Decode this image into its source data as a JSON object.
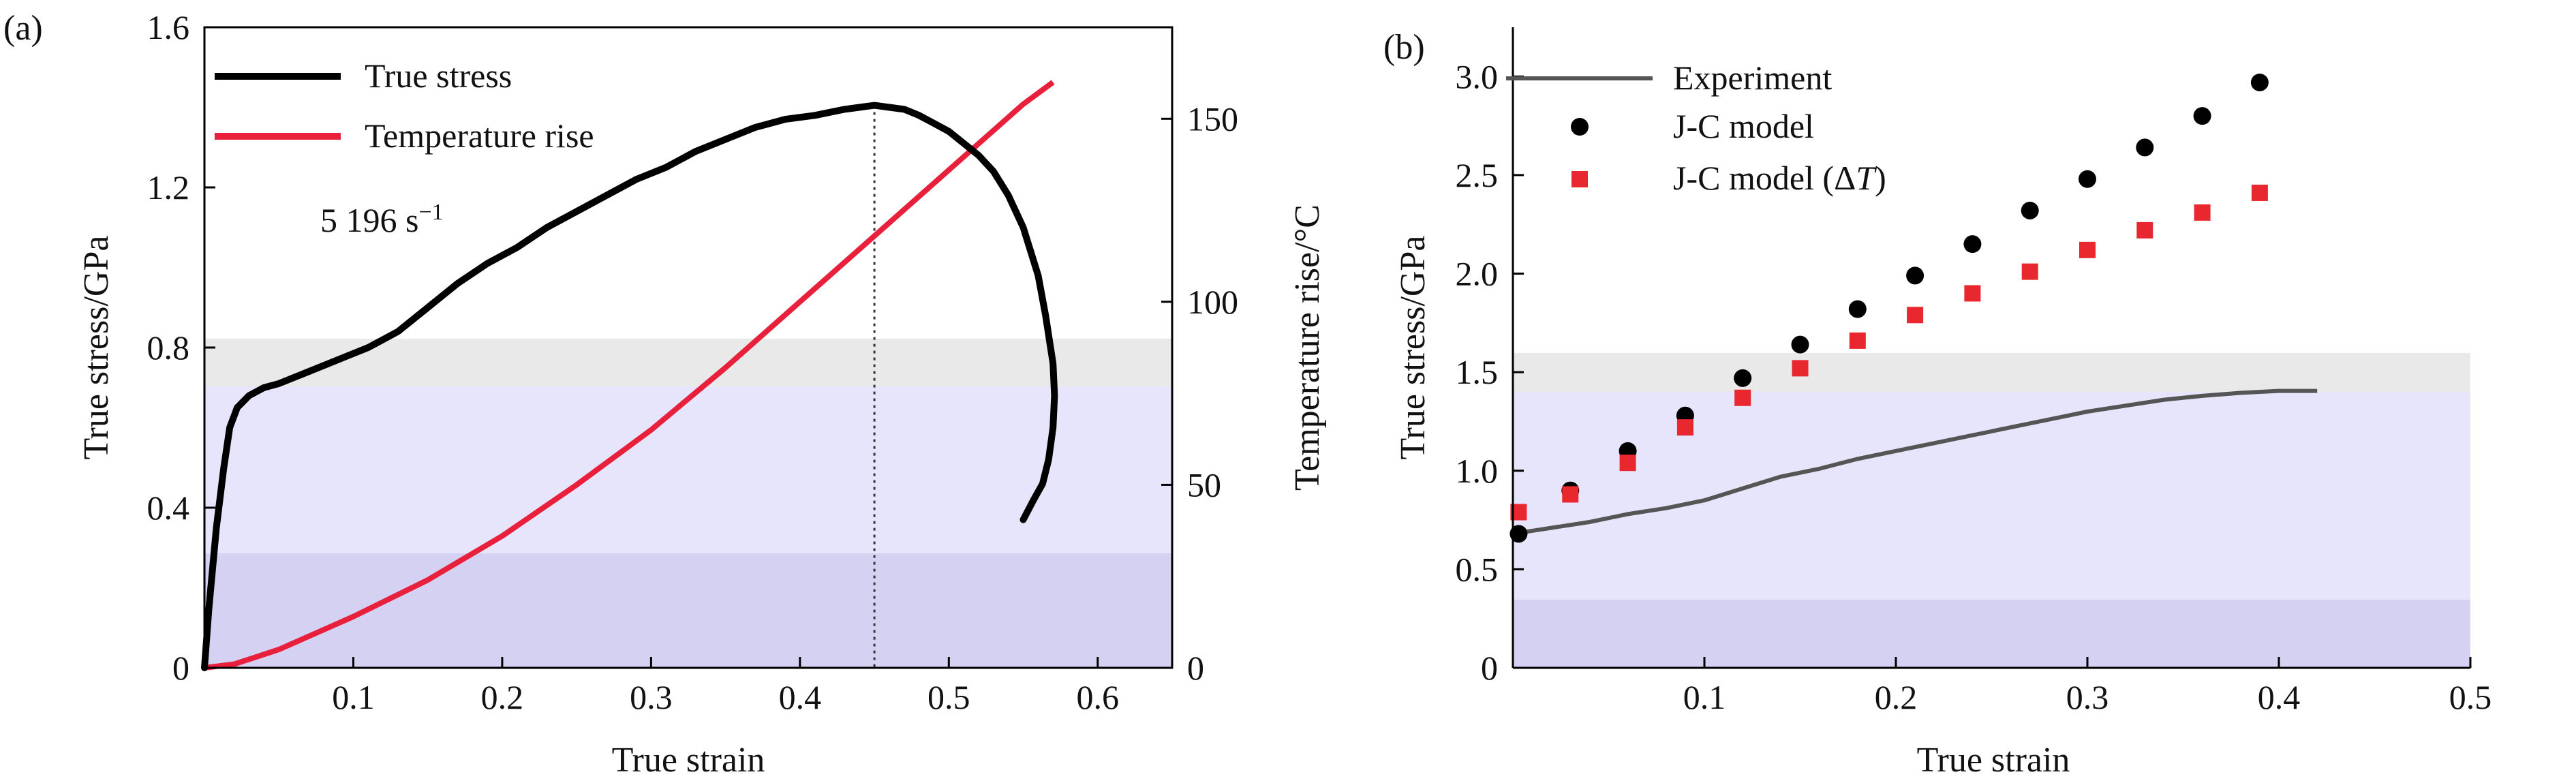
{
  "chart_data": [
    {
      "panel": "(a)",
      "type": "line",
      "annotation": {
        "text": "5 196 s",
        "superscript": "−1"
      },
      "xlabel": "True strain",
      "ylabel": "True stress/GPa",
      "ylabel_right": "Temperature rise/°C",
      "xlim": [
        0,
        0.65
      ],
      "ylim": [
        0,
        1.6
      ],
      "ylim_right": [
        0,
        175
      ],
      "xticks": [
        {
          "value": 0.1,
          "label": "0.1"
        },
        {
          "value": 0.2,
          "label": "0.2"
        },
        {
          "value": 0.3,
          "label": "0.3"
        },
        {
          "value": 0.4,
          "label": "0.4"
        },
        {
          "value": 0.5,
          "label": "0.5"
        },
        {
          "value": 0.6,
          "label": "0.6"
        }
      ],
      "yticks": [
        {
          "value": 0,
          "label": "0"
        },
        {
          "value": 0.4,
          "label": "0.4"
        },
        {
          "value": 0.8,
          "label": "0.8"
        },
        {
          "value": 1.2,
          "label": "1.2"
        },
        {
          "value": 1.6,
          "label": "1.6"
        }
      ],
      "yticks_right": [
        {
          "value": 0,
          "label": "0"
        },
        {
          "value": 50,
          "label": "50"
        },
        {
          "value": 100,
          "label": "100"
        },
        {
          "value": 150,
          "label": "150"
        }
      ],
      "reference_line": {
        "x": 0.45,
        "style": "dotted"
      },
      "series": [
        {
          "name": "True stress",
          "axis": "left",
          "color": "#000000",
          "x": [
            0.0,
            0.003,
            0.008,
            0.013,
            0.017,
            0.022,
            0.03,
            0.04,
            0.05,
            0.07,
            0.09,
            0.11,
            0.13,
            0.15,
            0.17,
            0.19,
            0.21,
            0.23,
            0.25,
            0.27,
            0.29,
            0.31,
            0.33,
            0.35,
            0.37,
            0.39,
            0.41,
            0.43,
            0.44,
            0.45,
            0.46,
            0.47,
            0.48,
            0.49,
            0.5,
            0.51,
            0.52,
            0.53,
            0.54,
            0.55,
            0.56,
            0.565,
            0.57,
            0.571,
            0.57,
            0.567,
            0.563,
            0.557,
            0.55
          ],
          "y": [
            0.0,
            0.15,
            0.35,
            0.5,
            0.6,
            0.65,
            0.68,
            0.7,
            0.71,
            0.74,
            0.77,
            0.8,
            0.84,
            0.9,
            0.96,
            1.01,
            1.05,
            1.1,
            1.14,
            1.18,
            1.22,
            1.25,
            1.29,
            1.32,
            1.35,
            1.37,
            1.38,
            1.395,
            1.4,
            1.405,
            1.4,
            1.395,
            1.38,
            1.36,
            1.34,
            1.31,
            1.28,
            1.24,
            1.18,
            1.1,
            0.98,
            0.88,
            0.76,
            0.68,
            0.6,
            0.52,
            0.46,
            0.42,
            0.37
          ]
        },
        {
          "name": "Temperature rise",
          "axis": "right",
          "color": "#e8203c",
          "x": [
            0.0,
            0.02,
            0.05,
            0.1,
            0.15,
            0.2,
            0.25,
            0.3,
            0.35,
            0.4,
            0.45,
            0.5,
            0.55,
            0.57
          ],
          "y": [
            0,
            1,
            5,
            14,
            24,
            36,
            50,
            65,
            82,
            100,
            118,
            136,
            154,
            160
          ]
        }
      ]
    },
    {
      "panel": "(b)",
      "type": "scatter",
      "xlabel": "True strain",
      "ylabel": "True stress/GPa",
      "xlim": [
        0,
        0.5
      ],
      "ylim": [
        0,
        3.25
      ],
      "xticks": [
        {
          "value": 0.1,
          "label": "0.1"
        },
        {
          "value": 0.2,
          "label": "0.2"
        },
        {
          "value": 0.3,
          "label": "0.3"
        },
        {
          "value": 0.4,
          "label": "0.4"
        },
        {
          "value": 0.5,
          "label": "0.5"
        }
      ],
      "yticks": [
        {
          "value": 0,
          "label": "0"
        },
        {
          "value": 0.5,
          "label": "0.5"
        },
        {
          "value": 1.0,
          "label": "1.0"
        },
        {
          "value": 1.5,
          "label": "1.5"
        },
        {
          "value": 2.0,
          "label": "2.0"
        },
        {
          "value": 2.5,
          "label": "2.5"
        },
        {
          "value": 3.0,
          "label": "3.0"
        }
      ],
      "series": [
        {
          "name": "Experiment",
          "type": "line",
          "color": "#555555",
          "x": [
            0.0,
            0.02,
            0.04,
            0.06,
            0.08,
            0.1,
            0.12,
            0.14,
            0.16,
            0.18,
            0.2,
            0.22,
            0.24,
            0.26,
            0.28,
            0.3,
            0.32,
            0.34,
            0.36,
            0.38,
            0.4,
            0.42
          ],
          "y": [
            0.68,
            0.71,
            0.74,
            0.78,
            0.81,
            0.85,
            0.91,
            0.97,
            1.01,
            1.06,
            1.1,
            1.14,
            1.18,
            1.22,
            1.26,
            1.3,
            1.33,
            1.36,
            1.38,
            1.395,
            1.405,
            1.405
          ]
        },
        {
          "name": "J-C model",
          "type": "scatter",
          "marker": "circle",
          "color": "#000000",
          "x": [
            0.003,
            0.03,
            0.06,
            0.09,
            0.12,
            0.15,
            0.18,
            0.21,
            0.24,
            0.27,
            0.3,
            0.33,
            0.36,
            0.39
          ],
          "y": [
            0.68,
            0.9,
            1.1,
            1.28,
            1.47,
            1.64,
            1.82,
            1.99,
            2.15,
            2.32,
            2.48,
            2.64,
            2.8,
            2.97
          ]
        },
        {
          "name": "J-C model (ΔT)",
          "legend_prefix": "J-C model (Δ",
          "legend_italic": "T",
          "legend_suffix": ")",
          "type": "scatter",
          "marker": "square",
          "color": "#e8272e",
          "x": [
            0.003,
            0.03,
            0.06,
            0.09,
            0.12,
            0.15,
            0.18,
            0.21,
            0.24,
            0.27,
            0.3,
            0.33,
            0.36,
            0.39
          ],
          "y": [
            0.79,
            0.88,
            1.04,
            1.22,
            1.37,
            1.52,
            1.66,
            1.79,
            1.9,
            2.01,
            2.12,
            2.22,
            2.31,
            2.41
          ]
        }
      ]
    }
  ]
}
